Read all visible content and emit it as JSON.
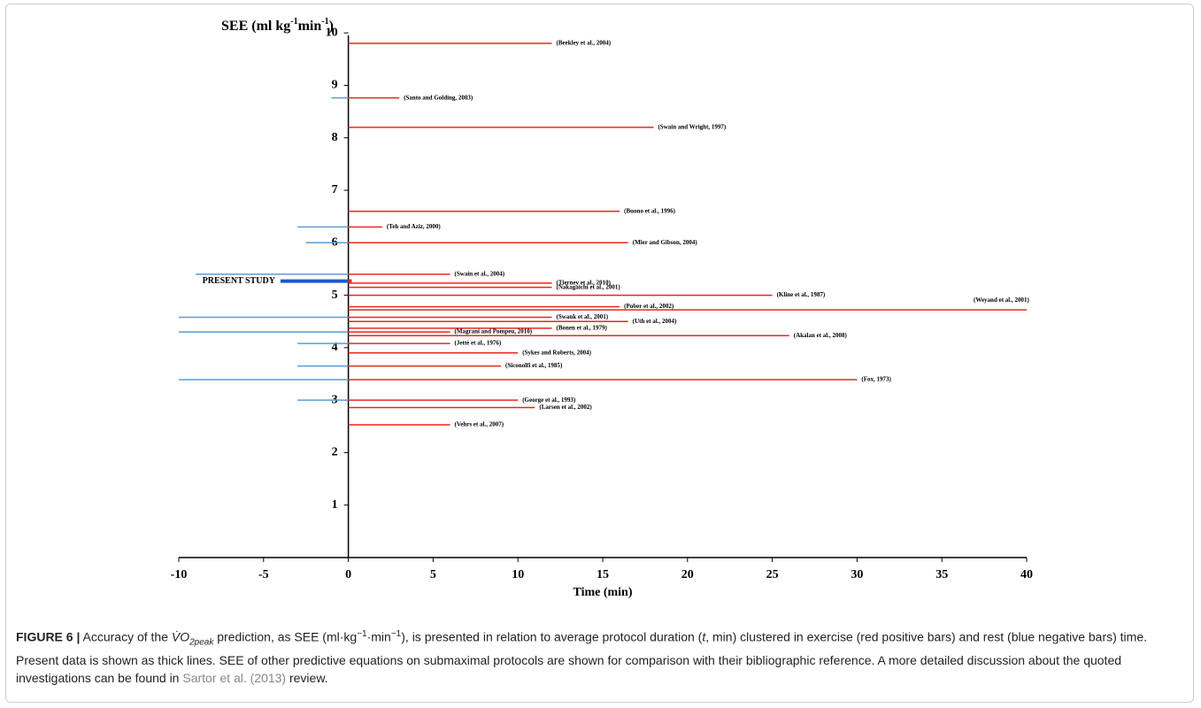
{
  "chart_data": {
    "type": "hbar-span",
    "y_title": [
      "SEE (ml kg",
      "-1",
      "min",
      "-1",
      ")"
    ],
    "x_title": "Time (min)",
    "xlim": [
      -10,
      40
    ],
    "xticks": [
      -10,
      -5,
      0,
      5,
      10,
      15,
      20,
      25,
      30,
      35,
      40
    ],
    "ylim": [
      0,
      10
    ],
    "yticks": [
      1,
      2,
      3,
      4,
      5,
      6,
      7,
      8,
      9,
      10
    ],
    "exercise_color": "#e8271e",
    "rest_color": "#5b9bd5",
    "studies": [
      "(Beekley et al., 2004)",
      "(Santo and Golding, 2003)",
      "(Swain and Wright, 1997)",
      "(Buono et al., 1996)",
      "(Teh and Aziz, 2000)",
      "(Mier and Gibson, 2004)",
      "(Swain et al., 2004)",
      "(Tierney et al., 2010)",
      "(Nakagaichi et al., 2001)",
      "(Kline et al., 1987)",
      "(Pober et al., 2002)",
      "(Weyand et al., 2001)",
      "(Swank et al., 2001)",
      "(Uth et al., 2004)",
      "(Bonen et al., 1979)",
      "(Magrani and Pompeu, 2010)",
      "(Akalan et al., 2008)",
      "(Jetté et al., 1976)",
      "(Sykes and Roberts, 2004)",
      "(Siconolfi et al., 1985)",
      "(Fox, 1973)",
      "(George et al., 1993)",
      "(Larsen et al., 2002)",
      "(Vehrs et al., 2007)"
    ],
    "see": [
      9.8,
      8.76,
      8.2,
      6.6,
      6.3,
      6.0,
      5.4,
      5.23,
      5.15,
      5.0,
      4.78,
      4.72,
      4.58,
      4.5,
      4.37,
      4.3,
      4.23,
      4.08,
      3.9,
      3.65,
      3.39,
      3.0,
      2.86,
      2.53
    ],
    "exercise": [
      12,
      3,
      18,
      16,
      2,
      16.5,
      6,
      12,
      12,
      25,
      16,
      40,
      12,
      16.5,
      12,
      6,
      26,
      6,
      10,
      9,
      30,
      10,
      11,
      6
    ],
    "rest": [
      null,
      -1,
      null,
      null,
      -3,
      -2.5,
      -9,
      null,
      null,
      null,
      null,
      null,
      -10,
      null,
      null,
      -10,
      null,
      -3,
      null,
      -3,
      -10,
      -3,
      null,
      null
    ],
    "present": {
      "label": "PRESENT STUDY",
      "see": 5.27,
      "exercise": 0.2,
      "rest": -4
    }
  },
  "caption": [
    "FIGURE 6 |",
    " Accuracy of the ",
    "V̇O",
    "2peak",
    " prediction, as SEE (ml·kg",
    "−1",
    "·min",
    "−1",
    "), is presented in relation to average protocol duration (",
    "t",
    ", min) clustered in exercise (red positive bars) and rest (blue negative bars) time. Present data is shown as thick lines. SEE of other predictive equations on submaximal protocols are shown for comparison with their bibliographic reference. A more detailed discussion about the quoted investigations can be found in ",
    "Sartor et al. (2013)",
    " review."
  ]
}
